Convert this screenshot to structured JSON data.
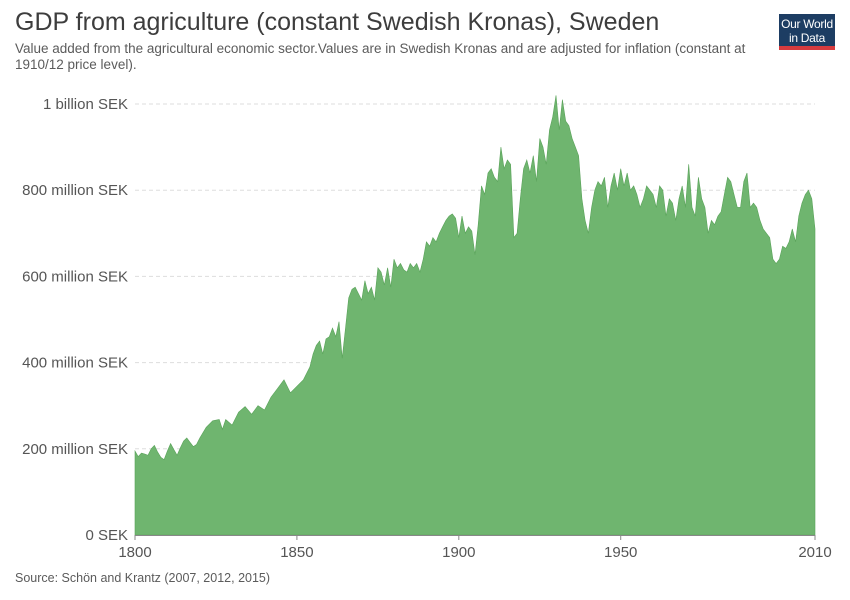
{
  "header": {
    "title": "GDP from agriculture (constant Swedish Kronas), Sweden",
    "subtitle": "Value added from the agricultural economic sector.Values are in Swedish Kronas and are adjusted for inflation (constant at 1910/12 price level).",
    "logo_line1": "Our World",
    "logo_line2": "in Data"
  },
  "footer": {
    "source": "Source: Schön and Krantz (2007, 2012, 2015)"
  },
  "colors": {
    "area_fill": "#6fb56f",
    "area_stroke": "#5aa35a",
    "grid": "#dddddd",
    "axis": "#888888",
    "tick_text": "#555555"
  },
  "chart_data": {
    "type": "area",
    "xlim": [
      1800,
      2010
    ],
    "ylim": [
      0,
      1000000000
    ],
    "grid": "horizontal-dashed",
    "legend": "none",
    "y_ticks": [
      {
        "value": 0,
        "label": "0 SEK"
      },
      {
        "value": 200000000,
        "label": "200 million SEK"
      },
      {
        "value": 400000000,
        "label": "400 million SEK"
      },
      {
        "value": 600000000,
        "label": "600 million SEK"
      },
      {
        "value": 800000000,
        "label": "800 million SEK"
      },
      {
        "value": 1000000000,
        "label": "1 billion SEK"
      }
    ],
    "x_ticks": [
      {
        "value": 1800,
        "label": "1800"
      },
      {
        "value": 1850,
        "label": "1850"
      },
      {
        "value": 1900,
        "label": "1900"
      },
      {
        "value": 1950,
        "label": "1950"
      },
      {
        "value": 2010,
        "label": "2010"
      }
    ],
    "x": [
      1800,
      1801,
      1802,
      1803,
      1804,
      1805,
      1806,
      1807,
      1808,
      1809,
      1810,
      1811,
      1812,
      1813,
      1814,
      1815,
      1816,
      1817,
      1818,
      1819,
      1820,
      1822,
      1824,
      1826,
      1827,
      1828,
      1830,
      1832,
      1834,
      1836,
      1838,
      1840,
      1842,
      1844,
      1846,
      1848,
      1850,
      1852,
      1854,
      1855,
      1856,
      1857,
      1858,
      1859,
      1860,
      1861,
      1862,
      1863,
      1864,
      1865,
      1866,
      1867,
      1868,
      1870,
      1871,
      1872,
      1873,
      1874,
      1875,
      1876,
      1877,
      1878,
      1879,
      1880,
      1881,
      1882,
      1883,
      1884,
      1885,
      1886,
      1887,
      1888,
      1889,
      1890,
      1891,
      1892,
      1893,
      1894,
      1895,
      1896,
      1897,
      1898,
      1899,
      1900,
      1901,
      1902,
      1903,
      1904,
      1905,
      1906,
      1907,
      1908,
      1909,
      1910,
      1911,
      1912,
      1913,
      1914,
      1915,
      1916,
      1917,
      1918,
      1919,
      1920,
      1921,
      1922,
      1923,
      1924,
      1925,
      1926,
      1927,
      1928,
      1929,
      1930,
      1931,
      1932,
      1933,
      1934,
      1935,
      1936,
      1937,
      1938,
      1939,
      1940,
      1941,
      1942,
      1943,
      1944,
      1945,
      1946,
      1947,
      1948,
      1949,
      1950,
      1951,
      1952,
      1953,
      1954,
      1955,
      1956,
      1957,
      1958,
      1959,
      1960,
      1961,
      1962,
      1963,
      1964,
      1965,
      1966,
      1967,
      1968,
      1969,
      1970,
      1971,
      1972,
      1973,
      1974,
      1975,
      1976,
      1977,
      1978,
      1979,
      1980,
      1981,
      1982,
      1983,
      1984,
      1985,
      1986,
      1987,
      1988,
      1989,
      1990,
      1991,
      1992,
      1993,
      1994,
      1995,
      1996,
      1997,
      1998,
      1999,
      2000,
      2001,
      2002,
      2003,
      2004,
      2005,
      2006,
      2007,
      2008,
      2009,
      2010
    ],
    "series": [
      {
        "values": [
          195000000,
          182000000,
          190000000,
          188000000,
          185000000,
          200000000,
          208000000,
          192000000,
          180000000,
          175000000,
          195000000,
          212000000,
          198000000,
          185000000,
          202000000,
          218000000,
          225000000,
          215000000,
          205000000,
          210000000,
          225000000,
          250000000,
          265000000,
          268000000,
          245000000,
          268000000,
          255000000,
          285000000,
          298000000,
          280000000,
          300000000,
          290000000,
          320000000,
          340000000,
          360000000,
          330000000,
          345000000,
          360000000,
          390000000,
          420000000,
          440000000,
          450000000,
          420000000,
          455000000,
          460000000,
          480000000,
          460000000,
          495000000,
          410000000,
          480000000,
          550000000,
          570000000,
          575000000,
          545000000,
          590000000,
          560000000,
          575000000,
          545000000,
          620000000,
          610000000,
          580000000,
          620000000,
          575000000,
          640000000,
          620000000,
          630000000,
          615000000,
          610000000,
          630000000,
          620000000,
          630000000,
          610000000,
          640000000,
          680000000,
          670000000,
          690000000,
          680000000,
          700000000,
          715000000,
          730000000,
          740000000,
          745000000,
          735000000,
          690000000,
          740000000,
          700000000,
          715000000,
          705000000,
          650000000,
          720000000,
          810000000,
          790000000,
          840000000,
          850000000,
          830000000,
          820000000,
          900000000,
          850000000,
          870000000,
          860000000,
          690000000,
          700000000,
          780000000,
          850000000,
          870000000,
          840000000,
          880000000,
          820000000,
          920000000,
          900000000,
          860000000,
          940000000,
          970000000,
          1020000000,
          940000000,
          1010000000,
          960000000,
          950000000,
          920000000,
          900000000,
          880000000,
          780000000,
          730000000,
          700000000,
          760000000,
          800000000,
          820000000,
          810000000,
          830000000,
          760000000,
          810000000,
          840000000,
          800000000,
          850000000,
          810000000,
          840000000,
          800000000,
          810000000,
          790000000,
          760000000,
          780000000,
          810000000,
          800000000,
          790000000,
          760000000,
          810000000,
          800000000,
          740000000,
          780000000,
          770000000,
          730000000,
          780000000,
          810000000,
          760000000,
          860000000,
          760000000,
          740000000,
          830000000,
          780000000,
          760000000,
          700000000,
          730000000,
          720000000,
          740000000,
          750000000,
          790000000,
          830000000,
          820000000,
          790000000,
          760000000,
          760000000,
          820000000,
          840000000,
          760000000,
          770000000,
          760000000,
          730000000,
          710000000,
          700000000,
          690000000,
          640000000,
          630000000,
          640000000,
          670000000,
          665000000,
          680000000,
          710000000,
          680000000,
          740000000,
          770000000,
          790000000,
          800000000,
          780000000,
          710000000
        ]
      }
    ]
  }
}
